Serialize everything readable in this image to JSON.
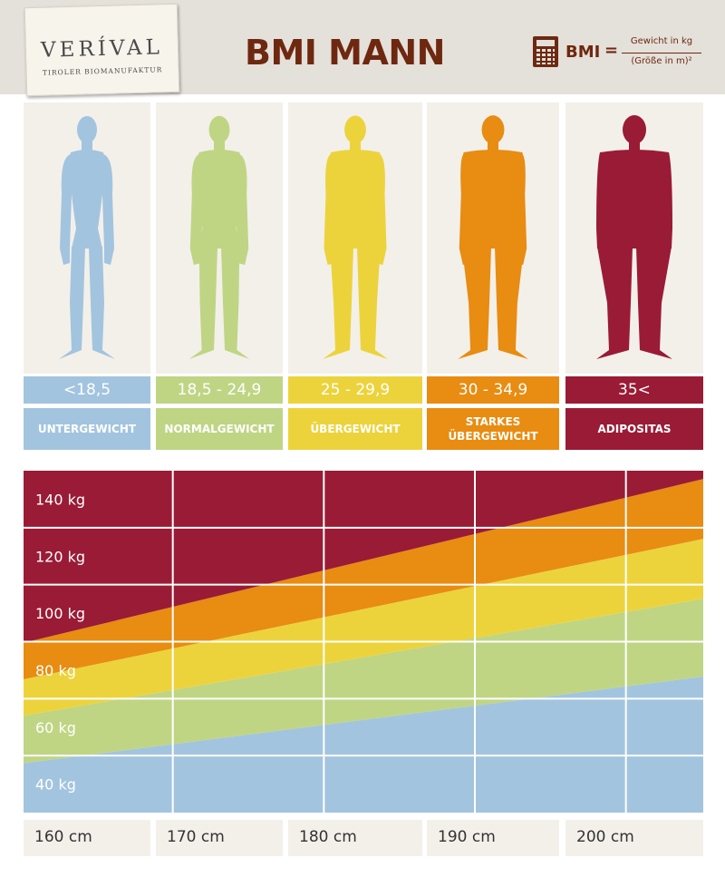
{
  "header": {
    "logo_name": "VERÍVAL",
    "logo_sub": "TIROLER BIOMANUFAKTUR",
    "title": "BMI MANN",
    "formula": {
      "lhs": "BMI",
      "eq": "=",
      "numerator": "Gewicht in kg",
      "denominator": "(Größe in m)²"
    }
  },
  "categories": [
    {
      "range": "<18,5",
      "label": "UNTERGEWICHT",
      "color": "#a3c4df",
      "build": 0.0
    },
    {
      "range": "18,5 - 24,9",
      "label": "NORMALGEWICHT",
      "color": "#bfd584",
      "build": 0.22
    },
    {
      "range": "25 - 29,9",
      "label": "ÜBERGEWICHT",
      "color": "#ecd33c",
      "build": 0.45
    },
    {
      "range": "30 - 34,9",
      "label": "STARKES\nÜBERGEWICHT",
      "color": "#e88c12",
      "build": 0.72
    },
    {
      "range": "35<",
      "label": "ADIPOSITAS",
      "color": "#9a1b35",
      "build": 1.0
    }
  ],
  "chart_data": {
    "type": "area",
    "x": [
      160,
      170,
      180,
      190,
      200
    ],
    "x_tick_labels": [
      "160 cm",
      "170 cm",
      "180 cm",
      "190 cm",
      "200 cm"
    ],
    "y_tick_values": [
      40,
      60,
      80,
      100,
      120,
      140
    ],
    "y_tick_labels": [
      "40 kg",
      "60 kg",
      "80 kg",
      "100 kg",
      "120 kg",
      "140 kg"
    ],
    "ylim": [
      30,
      150
    ],
    "xlim": [
      160,
      205
    ],
    "bmi_thresholds": [
      18.5,
      25,
      30,
      35
    ],
    "band_colors": [
      "#a3c4df",
      "#bfd584",
      "#ecd33c",
      "#e88c12",
      "#9a1b35"
    ],
    "grid": true
  }
}
